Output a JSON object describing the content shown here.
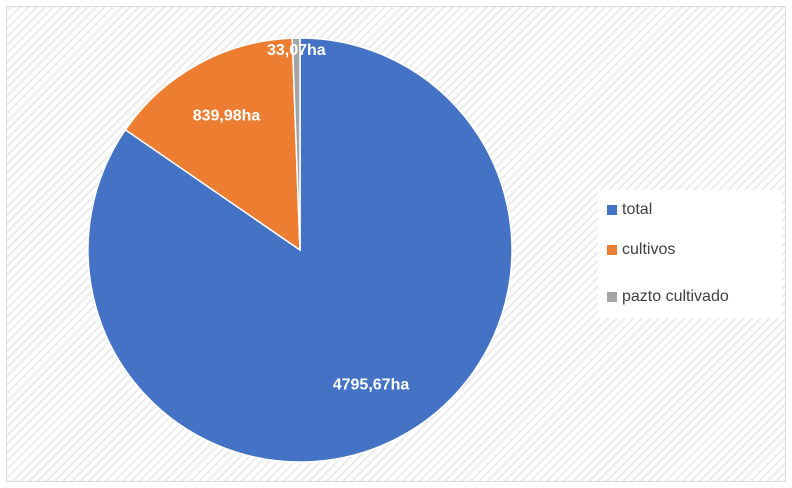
{
  "chart_data": {
    "type": "pie",
    "categories": [
      "total",
      "cultivos",
      "pazto cultivado"
    ],
    "values": [
      4795.67,
      839.98,
      33.07
    ],
    "value_labels": [
      "4795,67ha",
      "839,98ha",
      "33,07ha"
    ],
    "colors": [
      "#4472c4",
      "#ed7d31",
      "#a5a5a5"
    ],
    "legend": "right"
  }
}
